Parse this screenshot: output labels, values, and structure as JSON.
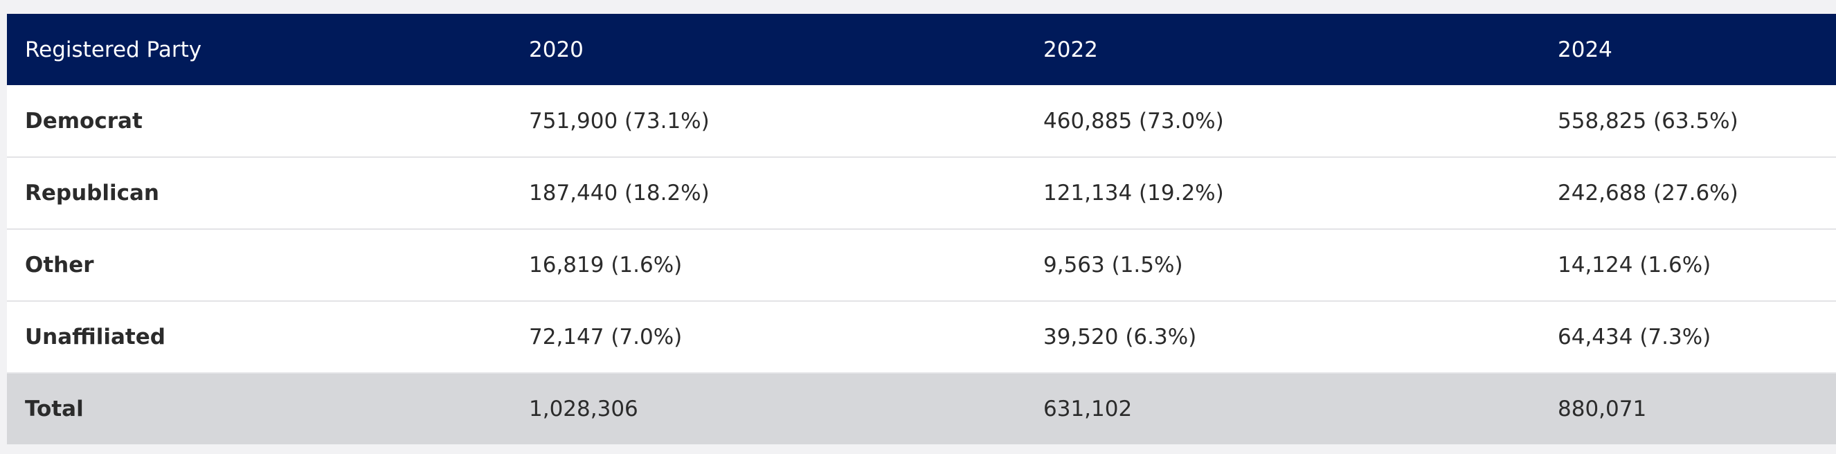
{
  "table": {
    "headers": [
      "Registered Party",
      "2020",
      "2022",
      "2024"
    ],
    "rows": [
      {
        "party": "Democrat",
        "values": [
          "751,900 (73.1%)",
          "460,885 (73.0%)",
          "558,825 (63.5%)"
        ]
      },
      {
        "party": "Republican",
        "values": [
          "187,440 (18.2%)",
          "121,134 (19.2%)",
          "242,688 (27.6%)"
        ]
      },
      {
        "party": "Other",
        "values": [
          "16,819 (1.6%)",
          "9,563 (1.5%)",
          "14,124 (1.6%)"
        ]
      },
      {
        "party": "Unaffiliated",
        "values": [
          "72,147 (7.0%)",
          "39,520 (6.3%)",
          "64,434 (7.3%)"
        ]
      }
    ],
    "total": {
      "party": "Total",
      "values": [
        "1,028,306",
        "631,102",
        "880,071"
      ]
    }
  },
  "colors": {
    "header_bg": "#001a5a",
    "total_row_bg": "#d6d7da",
    "row_divider": "#e3e3e6"
  }
}
